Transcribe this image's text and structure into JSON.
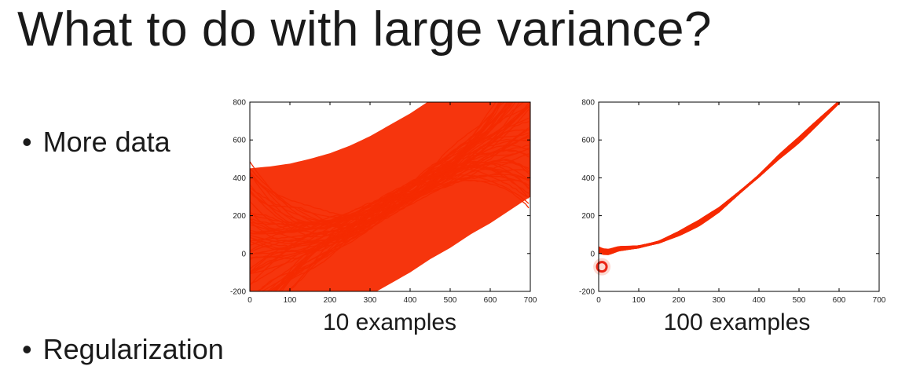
{
  "slide": {
    "title": "What to do with large variance?",
    "bullets": [
      {
        "label": "More data",
        "marker": "•"
      },
      {
        "label": "Regularization",
        "marker": "•"
      }
    ],
    "accent_color": "#f52a00"
  },
  "chart_data": [
    {
      "type": "line",
      "caption": "10 examples",
      "xlim": [
        0,
        700
      ],
      "ylim": [
        -200,
        800
      ],
      "xticks": [
        0,
        100,
        200,
        300,
        400,
        500,
        600,
        700
      ],
      "yticks": [
        -200,
        0,
        200,
        400,
        600,
        800
      ],
      "grid": false,
      "color": "#f52a00",
      "series_count": 100,
      "mean_curve": {
        "x": [
          0,
          50,
          100,
          150,
          200,
          250,
          300,
          350,
          400,
          450,
          500,
          550,
          600,
          650,
          700
        ],
        "y": [
          30,
          40,
          55,
          80,
          110,
          150,
          200,
          260,
          320,
          390,
          450,
          520,
          580,
          650,
          720
        ]
      }
    },
    {
      "type": "line",
      "caption": "100 examples",
      "xlim": [
        0,
        700
      ],
      "ylim": [
        -200,
        800
      ],
      "xticks": [
        0,
        100,
        200,
        300,
        400,
        500,
        600,
        700
      ],
      "yticks": [
        -200,
        0,
        200,
        400,
        600,
        800
      ],
      "grid": false,
      "color": "#f52a00",
      "series_count": 100,
      "mean_curve": {
        "x": [
          0,
          10,
          25,
          50,
          100,
          150,
          200,
          250,
          300,
          350,
          400,
          450,
          500,
          550,
          600
        ],
        "y": [
          20,
          10,
          8,
          25,
          35,
          60,
          105,
          160,
          230,
          320,
          410,
          510,
          600,
          700,
          800
        ]
      }
    }
  ]
}
